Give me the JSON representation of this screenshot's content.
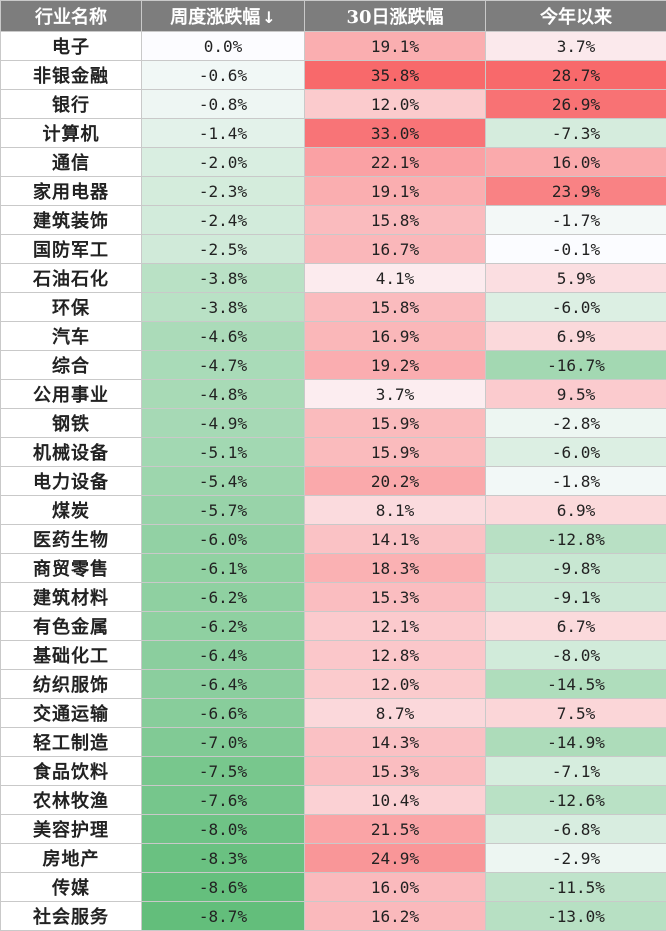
{
  "table": {
    "headers": [
      "行业名称",
      "周度涨跌幅",
      "30日涨跌幅",
      "今年以来"
    ],
    "sort_indicator": "↓",
    "rows": [
      {
        "name": "电子",
        "week": "0.0%",
        "d30": "19.1%",
        "ytd": "3.7%"
      },
      {
        "name": "非银金融",
        "week": "-0.6%",
        "d30": "35.8%",
        "ytd": "28.7%"
      },
      {
        "name": "银行",
        "week": "-0.8%",
        "d30": "12.0%",
        "ytd": "26.9%"
      },
      {
        "name": "计算机",
        "week": "-1.4%",
        "d30": "33.0%",
        "ytd": "-7.3%"
      },
      {
        "name": "通信",
        "week": "-2.0%",
        "d30": "22.1%",
        "ytd": "16.0%"
      },
      {
        "name": "家用电器",
        "week": "-2.3%",
        "d30": "19.1%",
        "ytd": "23.9%"
      },
      {
        "name": "建筑装饰",
        "week": "-2.4%",
        "d30": "15.8%",
        "ytd": "-1.7%"
      },
      {
        "name": "国防军工",
        "week": "-2.5%",
        "d30": "16.7%",
        "ytd": "-0.1%"
      },
      {
        "name": "石油石化",
        "week": "-3.8%",
        "d30": "4.1%",
        "ytd": "5.9%"
      },
      {
        "name": "环保",
        "week": "-3.8%",
        "d30": "15.8%",
        "ytd": "-6.0%"
      },
      {
        "name": "汽车",
        "week": "-4.6%",
        "d30": "16.9%",
        "ytd": "6.9%"
      },
      {
        "name": "综合",
        "week": "-4.7%",
        "d30": "19.2%",
        "ytd": "-16.7%"
      },
      {
        "name": "公用事业",
        "week": "-4.8%",
        "d30": "3.7%",
        "ytd": "9.5%"
      },
      {
        "name": "钢铁",
        "week": "-4.9%",
        "d30": "15.9%",
        "ytd": "-2.8%"
      },
      {
        "name": "机械设备",
        "week": "-5.1%",
        "d30": "15.9%",
        "ytd": "-6.0%"
      },
      {
        "name": "电力设备",
        "week": "-5.4%",
        "d30": "20.2%",
        "ytd": "-1.8%"
      },
      {
        "name": "煤炭",
        "week": "-5.7%",
        "d30": "8.1%",
        "ytd": "6.9%"
      },
      {
        "name": "医药生物",
        "week": "-6.0%",
        "d30": "14.1%",
        "ytd": "-12.8%"
      },
      {
        "name": "商贸零售",
        "week": "-6.1%",
        "d30": "18.3%",
        "ytd": "-9.8%"
      },
      {
        "name": "建筑材料",
        "week": "-6.2%",
        "d30": "15.3%",
        "ytd": "-9.1%"
      },
      {
        "name": "有色金属",
        "week": "-6.2%",
        "d30": "12.1%",
        "ytd": "6.7%"
      },
      {
        "name": "基础化工",
        "week": "-6.4%",
        "d30": "12.8%",
        "ytd": "-8.0%"
      },
      {
        "name": "纺织服饰",
        "week": "-6.4%",
        "d30": "12.0%",
        "ytd": "-14.5%"
      },
      {
        "name": "交通运输",
        "week": "-6.6%",
        "d30": "8.7%",
        "ytd": "7.5%"
      },
      {
        "name": "轻工制造",
        "week": "-7.0%",
        "d30": "14.3%",
        "ytd": "-14.9%"
      },
      {
        "name": "食品饮料",
        "week": "-7.5%",
        "d30": "15.3%",
        "ytd": "-7.1%"
      },
      {
        "name": "农林牧渔",
        "week": "-7.6%",
        "d30": "10.4%",
        "ytd": "-12.6%"
      },
      {
        "name": "美容护理",
        "week": "-8.0%",
        "d30": "21.5%",
        "ytd": "-6.8%"
      },
      {
        "name": "房地产",
        "week": "-8.3%",
        "d30": "24.9%",
        "ytd": "-2.9%"
      },
      {
        "name": "传媒",
        "week": "-8.6%",
        "d30": "16.0%",
        "ytd": "-11.5%"
      },
      {
        "name": "社会服务",
        "week": "-8.7%",
        "d30": "16.2%",
        "ytd": "-13.0%"
      }
    ]
  },
  "chart_data": {
    "type": "table",
    "columns": [
      "行业名称",
      "周度涨跌幅",
      "30日涨跌幅",
      "今年以来"
    ],
    "units": "%",
    "categories": [
      "电子",
      "非银金融",
      "银行",
      "计算机",
      "通信",
      "家用电器",
      "建筑装饰",
      "国防军工",
      "石油石化",
      "环保",
      "汽车",
      "综合",
      "公用事业",
      "钢铁",
      "机械设备",
      "电力设备",
      "煤炭",
      "医药生物",
      "商贸零售",
      "建筑材料",
      "有色金属",
      "基础化工",
      "纺织服饰",
      "交通运输",
      "轻工制造",
      "食品饮料",
      "农林牧渔",
      "美容护理",
      "房地产",
      "传媒",
      "社会服务"
    ],
    "series": [
      {
        "name": "周度涨跌幅",
        "values": [
          0.0,
          -0.6,
          -0.8,
          -1.4,
          -2.0,
          -2.3,
          -2.4,
          -2.5,
          -3.8,
          -3.8,
          -4.6,
          -4.7,
          -4.8,
          -4.9,
          -5.1,
          -5.4,
          -5.7,
          -6.0,
          -6.1,
          -6.2,
          -6.2,
          -6.4,
          -6.4,
          -6.6,
          -7.0,
          -7.5,
          -7.6,
          -8.0,
          -8.3,
          -8.6,
          -8.7
        ]
      },
      {
        "name": "30日涨跌幅",
        "values": [
          19.1,
          35.8,
          12.0,
          33.0,
          22.1,
          19.1,
          15.8,
          16.7,
          4.1,
          15.8,
          16.9,
          19.2,
          3.7,
          15.9,
          15.9,
          20.2,
          8.1,
          14.1,
          18.3,
          15.3,
          12.1,
          12.8,
          12.0,
          8.7,
          14.3,
          15.3,
          10.4,
          21.5,
          24.9,
          16.0,
          16.2
        ]
      },
      {
        "name": "今年以来",
        "values": [
          3.7,
          28.7,
          26.9,
          -7.3,
          16.0,
          23.9,
          -1.7,
          -0.1,
          5.9,
          -6.0,
          6.9,
          -16.7,
          9.5,
          -2.8,
          -6.0,
          -1.8,
          6.9,
          -12.8,
          -9.8,
          -9.1,
          6.7,
          -8.0,
          -14.5,
          7.5,
          -14.9,
          -7.1,
          -12.6,
          -6.8,
          -2.9,
          -11.5,
          -13.0
        ]
      }
    ],
    "colors": {
      "positive_max": "#f8696b",
      "negative_max": "#63be7b",
      "neutral": "#fcfcff",
      "header_bg": "#7d7d7d",
      "header_text": "#ffffff"
    }
  }
}
